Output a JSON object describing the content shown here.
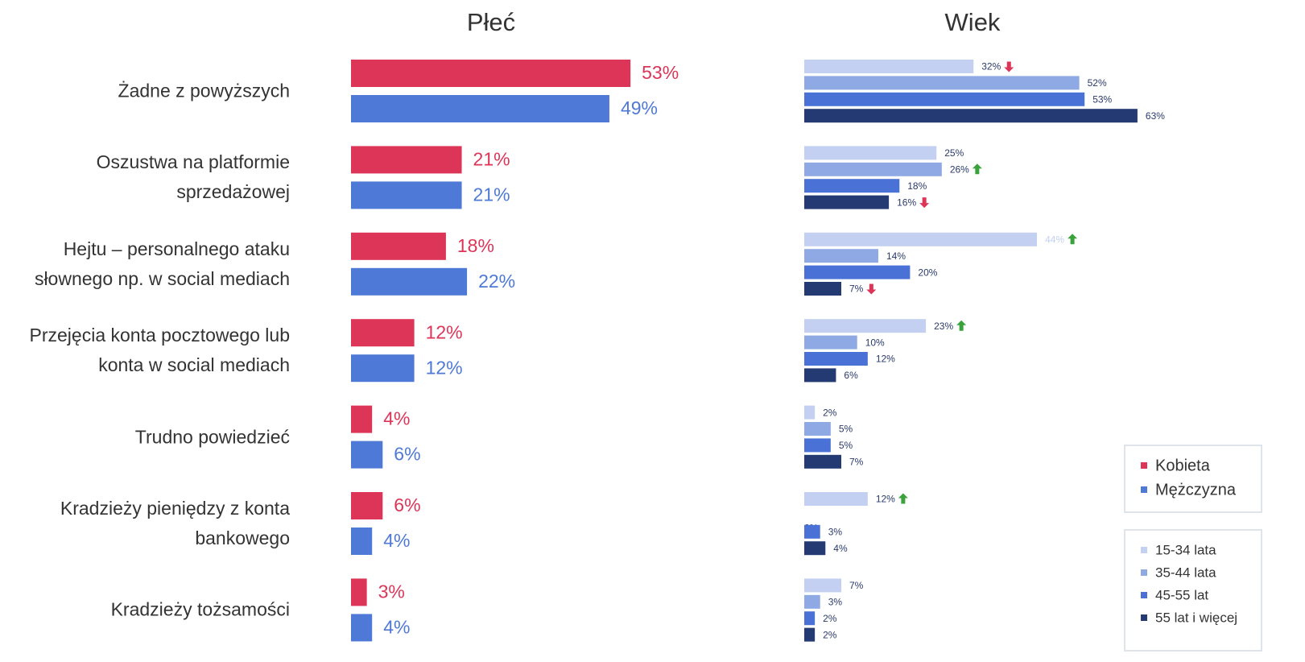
{
  "chart_data": [
    {
      "type": "bar",
      "orientation": "horizontal",
      "title": "Płeć",
      "categories": [
        "Żadne z powyższych",
        "Oszustwa na platformie\nsprzedażowej",
        "Hejtu – personalnego ataku\nsłownego np. w social mediach",
        "Przejęcia konta pocztowego lub\nkonta w social mediach",
        "Trudno powiedzieć",
        "Kradzieży pieniędzy z konta\nbankowego",
        "Kradzieży tożsamości"
      ],
      "series": [
        {
          "name": "Kobieta",
          "color": "#dc3558",
          "values": [
            53,
            21,
            18,
            12,
            4,
            6,
            3
          ],
          "value_labels": [
            "53%",
            "21%",
            "18%",
            "12%",
            "4%",
            "6%",
            "3%"
          ]
        },
        {
          "name": "Mężczyzna",
          "color": "#4f79d6",
          "values": [
            49,
            21,
            22,
            12,
            6,
            4,
            4
          ],
          "value_labels": [
            "49%",
            "21%",
            "22%",
            "12%",
            "6%",
            "4%",
            "4%"
          ]
        }
      ],
      "legend": "right"
    },
    {
      "type": "bar",
      "orientation": "horizontal",
      "title": "Wiek",
      "series": [
        {
          "name": "15-34 lata",
          "color": "#c3d0f2",
          "values": [
            32,
            25,
            44,
            23,
            2,
            12,
            7
          ],
          "value_labels": [
            "32%",
            "25%",
            "44%",
            "23%",
            "2%",
            "12%",
            "7%"
          ],
          "markers": [
            "down",
            null,
            "up",
            "up",
            null,
            "up",
            null
          ]
        },
        {
          "name": "35-44 lata",
          "color": "#8ea9e3",
          "values": [
            52,
            26,
            14,
            10,
            5,
            0,
            3
          ],
          "value_labels": [
            "52%",
            "26%",
            "14%",
            "10%",
            "5%",
            "0%",
            "3%"
          ],
          "markers": [
            null,
            "up",
            null,
            null,
            null,
            null,
            null
          ]
        },
        {
          "name": "45-55 lat",
          "color": "#4a72d6",
          "values": [
            53,
            18,
            20,
            12,
            5,
            3,
            2
          ],
          "value_labels": [
            "53%",
            "18%",
            "20%",
            "12%",
            "5%",
            "3%",
            "2%"
          ],
          "markers": [
            null,
            null,
            null,
            null,
            null,
            null,
            null
          ]
        },
        {
          "name": "55 lat i więcej",
          "color": "#233a73",
          "values": [
            63,
            16,
            7,
            6,
            7,
            4,
            2
          ],
          "value_labels": [
            "63%",
            "16%",
            "7%",
            "6%",
            "7%",
            "4%",
            "2%"
          ],
          "markers": [
            null,
            "down",
            "down",
            null,
            null,
            null,
            null
          ]
        }
      ],
      "legend": "right"
    }
  ]
}
